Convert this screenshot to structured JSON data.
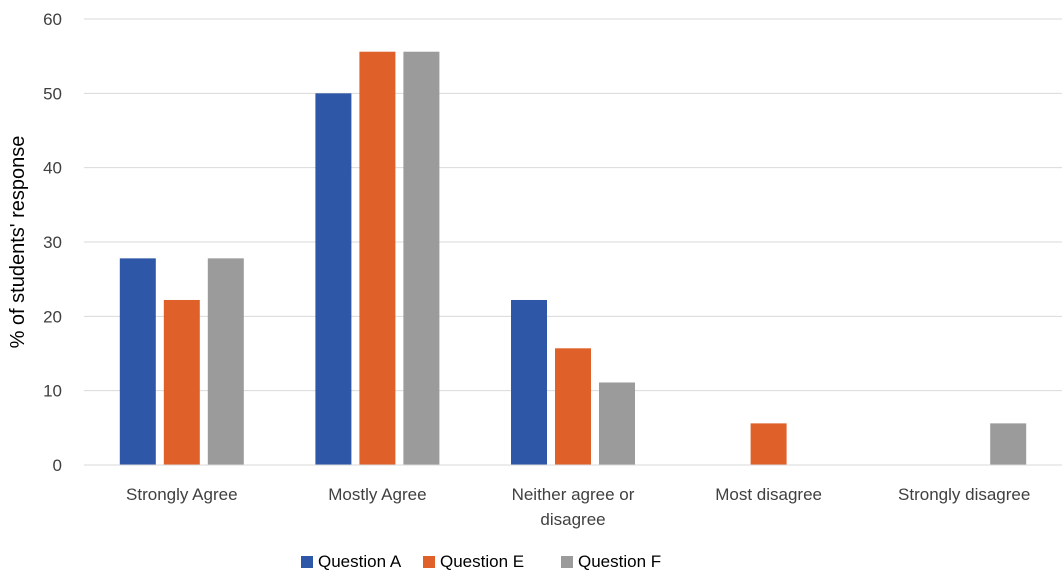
{
  "chart_data": {
    "type": "bar",
    "title": "",
    "xlabel": "",
    "ylabel": "% of students' response",
    "categories": [
      [
        "Strongly Agree"
      ],
      [
        "Mostly Agree"
      ],
      [
        "Neither agree or",
        "disagree"
      ],
      [
        "Most disagree"
      ],
      [
        "Strongly disagree"
      ]
    ],
    "series": [
      {
        "name": "Question A",
        "color": "#2e57a8",
        "values": [
          27.8,
          50.0,
          22.2,
          0,
          0
        ]
      },
      {
        "name": "Question E",
        "color": "#e0602a",
        "values": [
          22.2,
          55.6,
          15.7,
          5.6,
          0
        ]
      },
      {
        "name": "Question F",
        "color": "#9b9b9b",
        "values": [
          27.8,
          55.6,
          11.1,
          0,
          5.6
        ]
      }
    ],
    "ylim": [
      0,
      60
    ],
    "yticks": [
      0,
      10,
      20,
      30,
      40,
      50,
      60
    ],
    "grid": true,
    "legend_position": "bottom"
  }
}
